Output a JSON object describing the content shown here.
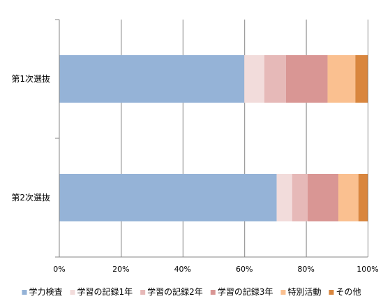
{
  "chart_data": {
    "type": "bar",
    "orientation": "horizontal",
    "stacked": "percent",
    "categories": [
      "第1次選抜",
      "第2次選抜"
    ],
    "series": [
      {
        "name": "学力検査",
        "values": [
          60,
          70.5
        ],
        "color": "#95B3D7"
      },
      {
        "name": "学習の記録1年",
        "values": [
          6.5,
          5
        ],
        "color": "#F2DCDB"
      },
      {
        "name": "学習の記録2年",
        "values": [
          7,
          5
        ],
        "color": "#E6B9B8"
      },
      {
        "name": "学習の記録3年",
        "values": [
          13.5,
          10
        ],
        "color": "#D99694"
      },
      {
        "name": "特別活動",
        "values": [
          9,
          6.5
        ],
        "color": "#FAC090"
      },
      {
        "name": "その他",
        "values": [
          4,
          3
        ],
        "color": "#D9863E"
      }
    ],
    "x_ticks": [
      "0%",
      "20%",
      "40%",
      "60%",
      "80%",
      "100%"
    ],
    "xlim": [
      0,
      100
    ],
    "grid": true,
    "legend": "bottom"
  }
}
